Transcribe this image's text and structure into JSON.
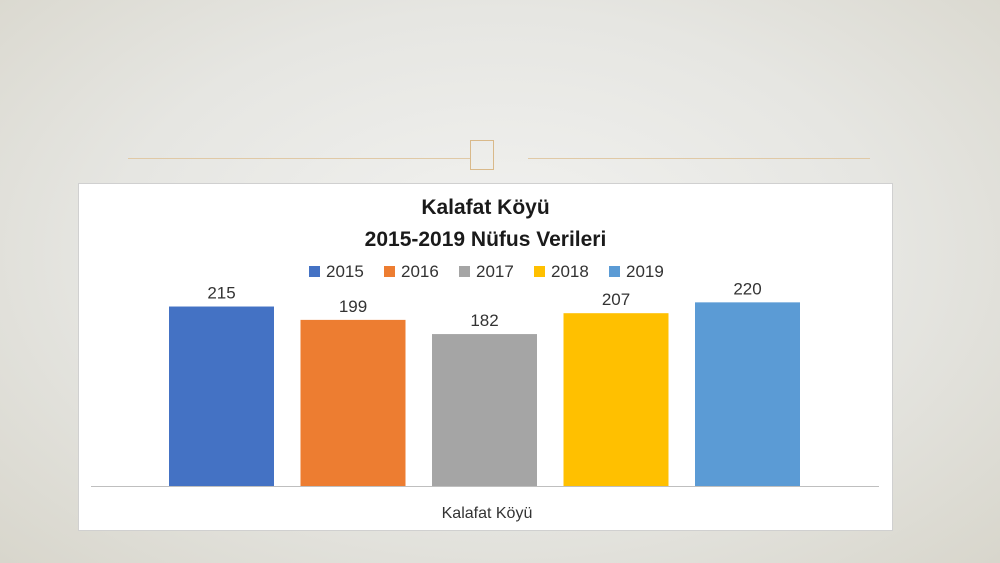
{
  "chart_data": {
    "type": "bar",
    "title_lines": [
      "Kalafat Köyü",
      "2015-2019 Nüfus Verileri"
    ],
    "categories": [
      "Kalafat Köyü"
    ],
    "series": [
      {
        "name": "2015",
        "values": [
          215
        ],
        "color": "#4472C4"
      },
      {
        "name": "2016",
        "values": [
          199
        ],
        "color": "#ED7D31"
      },
      {
        "name": "2017",
        "values": [
          182
        ],
        "color": "#A5A5A5"
      },
      {
        "name": "2018",
        "values": [
          207
        ],
        "color": "#FFC000"
      },
      {
        "name": "2019",
        "values": [
          220
        ],
        "color": "#5B9BD5"
      }
    ],
    "xlabel": "",
    "ylabel": "",
    "ylim": [
      0,
      230
    ],
    "legend": "top",
    "grid": false
  }
}
